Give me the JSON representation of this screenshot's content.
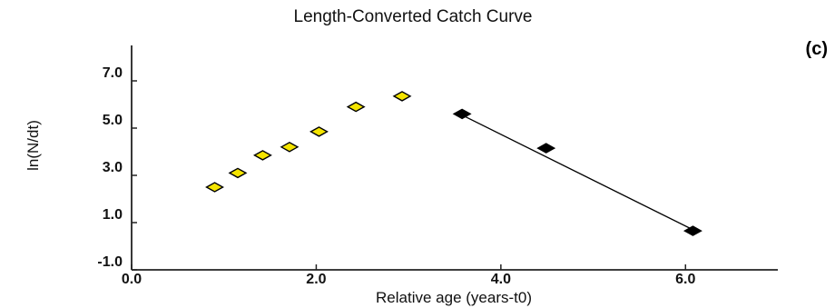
{
  "panel_label": "(c)",
  "chart_data": {
    "type": "scatter",
    "title": "Length-Converted Catch Curve",
    "xlabel": "Relative age (years-t0)",
    "ylabel": "ln(N/dt)",
    "xlim": [
      0.0,
      7.0
    ],
    "ylim": [
      -1.0,
      8.5
    ],
    "x_ticks": [
      {
        "value": 0.0,
        "label": "0.0"
      },
      {
        "value": 2.0,
        "label": "2.0"
      },
      {
        "value": 4.0,
        "label": "4.0"
      },
      {
        "value": 6.0,
        "label": "6.0"
      }
    ],
    "y_ticks": [
      {
        "value": -1.0,
        "label": "-1.0"
      },
      {
        "value": 1.0,
        "label": "1.0"
      },
      {
        "value": 3.0,
        "label": "3.0"
      },
      {
        "value": 5.0,
        "label": "5.0"
      },
      {
        "value": 7.0,
        "label": "7.0"
      }
    ],
    "series": [
      {
        "color": "#f4e400",
        "marker": "diamond",
        "points": [
          {
            "x": 0.9,
            "y": 2.5
          },
          {
            "x": 1.15,
            "y": 3.1
          },
          {
            "x": 1.42,
            "y": 3.85
          },
          {
            "x": 1.71,
            "y": 4.2
          },
          {
            "x": 2.03,
            "y": 4.85
          },
          {
            "x": 2.43,
            "y": 5.9
          },
          {
            "x": 2.93,
            "y": 6.35
          }
        ]
      },
      {
        "color": "#000000",
        "marker": "diamond",
        "points": [
          {
            "x": 3.58,
            "y": 5.6
          },
          {
            "x": 4.49,
            "y": 4.15
          },
          {
            "x": 6.08,
            "y": 0.65
          }
        ]
      }
    ],
    "regression_line": {
      "x1": 3.58,
      "y1": 5.55,
      "x2": 6.08,
      "y2": 0.7,
      "color": "#000000"
    },
    "grid": false
  }
}
